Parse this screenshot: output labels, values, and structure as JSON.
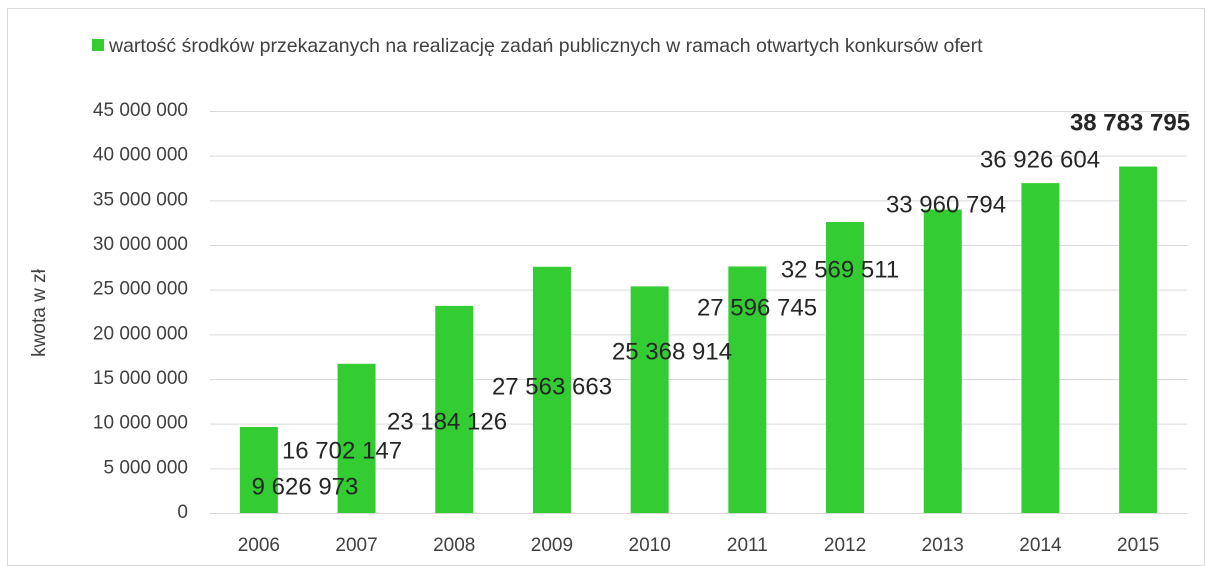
{
  "chart_data": {
    "type": "bar",
    "legend": "wartość środków przekazanych na realizację zadań publicznych w ramach otwartych konkursów ofert",
    "y_label": "kwota w zł",
    "categories": [
      "2006",
      "2007",
      "2008",
      "2009",
      "2010",
      "2011",
      "2012",
      "2013",
      "2014",
      "2015"
    ],
    "series": [
      {
        "name": "wartość środków przekazanych na realizację zadań publicznych w ramach otwartych konkursów ofert",
        "color": "#33cc33",
        "values": [
          9626973,
          16702147,
          23184126,
          27563663,
          25368914,
          27596745,
          32569511,
          33960794,
          36926604,
          38783795
        ],
        "value_labels": [
          "9 626 973",
          "16 702 147",
          "23 184 126",
          "27 563 663",
          "25 368 914",
          "27 596 745",
          "32 569 511",
          "33 960 794",
          "36 926 604",
          "38 783 795"
        ]
      }
    ],
    "ylim": [
      0,
      45000000
    ],
    "yticks": [
      0,
      {
        "value": 5000000,
        "label": "5 000 000"
      },
      {
        "value": 10000000,
        "label": "10 000 000"
      },
      {
        "value": 15000000,
        "label": "15 000 000"
      },
      {
        "value": 20000000,
        "label": "20 000 000"
      },
      {
        "value": 25000000,
        "label": "25 000 000"
      },
      {
        "value": 30000000,
        "label": "30 000 000"
      },
      {
        "value": 35000000,
        "label": "35 000 000"
      },
      {
        "value": 40000000,
        "label": "40 000 000"
      },
      {
        "value": 45000000,
        "label": "45 000 000"
      }
    ],
    "grid": true
  }
}
